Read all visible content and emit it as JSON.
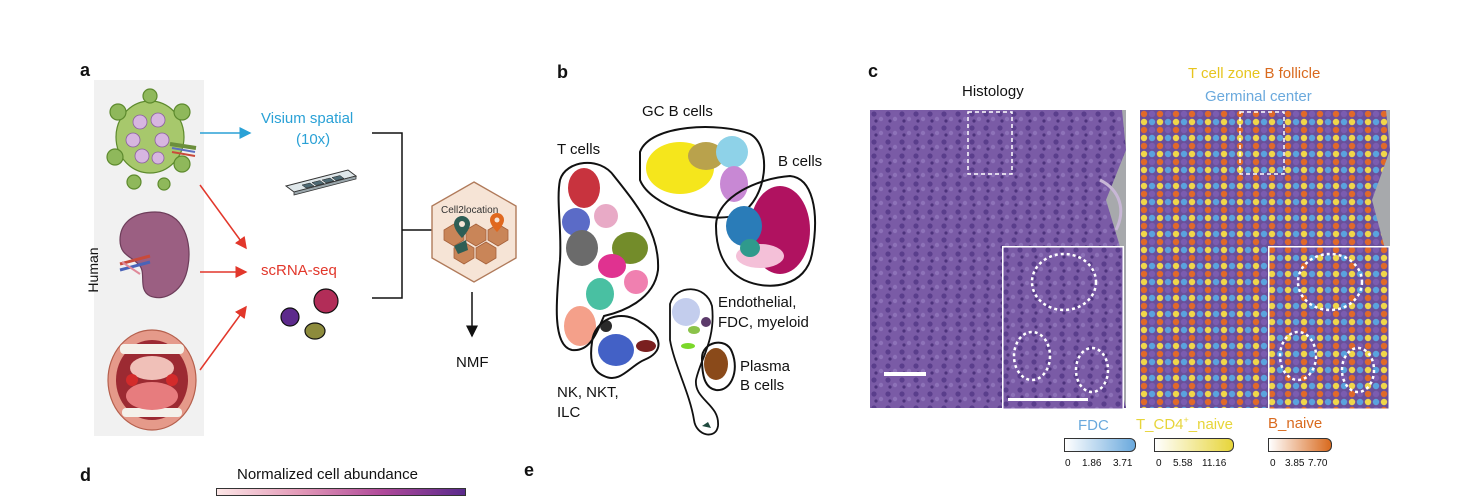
{
  "panels": {
    "a": "a",
    "b": "b",
    "c": "c",
    "d": "d",
    "e": "e"
  },
  "panel_a": {
    "visium_line1": "Visium spatial",
    "visium_line2": "(10x)",
    "scrnaseq": "scRNA-seq",
    "human": "Human",
    "cell2location": "Cell2location",
    "nmf": "NMF",
    "colors": {
      "visium": "#2aa1d6",
      "scrnaseq": "#e2372b"
    }
  },
  "panel_b": {
    "gc_b_cells": "GC B cells",
    "t_cells": "T cells",
    "b_cells": "B cells",
    "endo_line1": "Endothelial,",
    "endo_line2": "FDC, myeloid",
    "plasma_line1": "Plasma",
    "plasma_line2": "B cells",
    "nk_line1": "NK, NKT,",
    "nk_line2": "ILC"
  },
  "panel_c": {
    "histology": "Histology",
    "t_cell_zone": "T cell zone",
    "b_follicle": "B follicle",
    "germinal_center": "Germinal center",
    "colorbars": [
      {
        "name": "FDC",
        "ticks": [
          "0",
          "1.86",
          "3.71"
        ],
        "color": "#6aa9dd"
      },
      {
        "name_prefix": "T_CD4",
        "name_sup": "+",
        "name_suffix": "_naive",
        "ticks": [
          "0",
          "5.58",
          "11.16"
        ],
        "color": "#e7d53a"
      },
      {
        "name": "B_naive",
        "ticks": [
          "0",
          "3.85",
          "7.70"
        ],
        "color": "#d96a1e"
      }
    ]
  },
  "panel_d": {
    "colorbar_title": "Normalized cell abundance"
  }
}
